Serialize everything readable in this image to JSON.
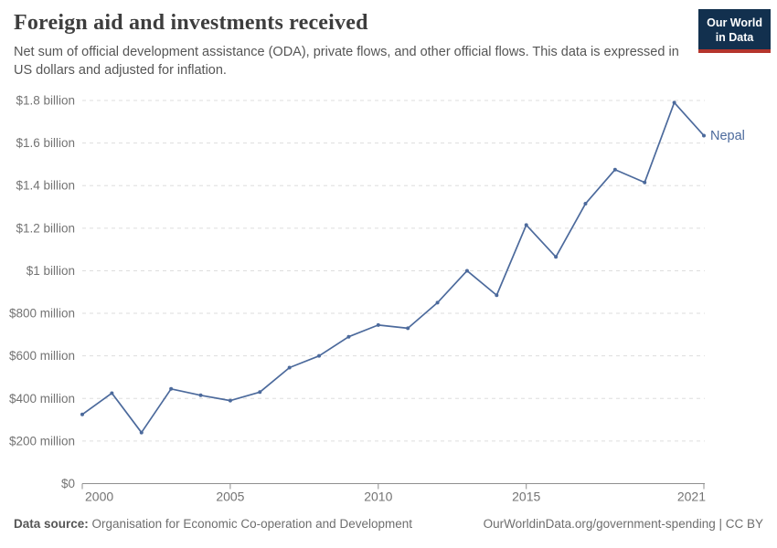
{
  "header": {
    "title": "Foreign aid and investments received",
    "subtitle": "Net sum of official development assistance (ODA), private flows, and other official flows. This data is expressed in US dollars and adjusted for inflation.",
    "logo": {
      "line1": "Our World",
      "line2": "in Data"
    }
  },
  "chart_data": {
    "type": "line",
    "title": "Foreign aid and investments received",
    "unit": "US dollars (millions), inflation-adjusted",
    "xlim": [
      2000,
      2021
    ],
    "ylim": [
      0,
      1800
    ],
    "grid": "horizontal dashed",
    "legend_position": "end-of-line label",
    "x_ticks": [
      2000,
      2005,
      2010,
      2015,
      2021
    ],
    "y_ticks": [
      {
        "value": 0,
        "label": "$0"
      },
      {
        "value": 200,
        "label": "$200 million"
      },
      {
        "value": 400,
        "label": "$400 million"
      },
      {
        "value": 600,
        "label": "$600 million"
      },
      {
        "value": 800,
        "label": "$800 million"
      },
      {
        "value": 1000,
        "label": "$1 billion"
      },
      {
        "value": 1200,
        "label": "$1.2 billion"
      },
      {
        "value": 1400,
        "label": "$1.4 billion"
      },
      {
        "value": 1600,
        "label": "$1.6 billion"
      },
      {
        "value": 1800,
        "label": "$1.8 billion"
      }
    ],
    "series": [
      {
        "name": "Nepal",
        "color": "#4C6A9C",
        "x": [
          2000,
          2001,
          2002,
          2003,
          2004,
          2005,
          2006,
          2007,
          2008,
          2009,
          2010,
          2011,
          2012,
          2013,
          2014,
          2015,
          2016,
          2017,
          2018,
          2019,
          2020,
          2021
        ],
        "values": [
          325,
          425,
          240,
          445,
          415,
          390,
          430,
          545,
          600,
          690,
          745,
          730,
          850,
          1000,
          885,
          1215,
          1065,
          1315,
          1475,
          1415,
          1790,
          1635
        ]
      }
    ],
    "colors": {
      "gridline": "#dddddd",
      "axis": "#8f8f8f",
      "tick_label": "#737373"
    }
  },
  "footer": {
    "datasource_label": "Data source:",
    "datasource_value": "Organisation for Economic Co-operation and Development",
    "link": "OurWorldinData.org/government-spending | CC BY"
  }
}
